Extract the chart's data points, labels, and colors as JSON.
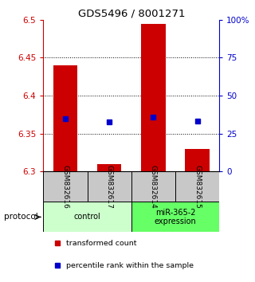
{
  "title": "GDS5496 / 8001271",
  "samples": [
    "GSM832616",
    "GSM832617",
    "GSM832614",
    "GSM832615"
  ],
  "bar_bottom": 6.3,
  "bar_tops": [
    6.44,
    6.31,
    6.495,
    6.33
  ],
  "percentile_values": [
    6.37,
    6.365,
    6.372,
    6.366
  ],
  "ylim_left": [
    6.3,
    6.5
  ],
  "ylim_right": [
    0,
    100
  ],
  "yticks_left": [
    6.3,
    6.35,
    6.4,
    6.45,
    6.5
  ],
  "yticks_right": [
    0,
    25,
    50,
    75,
    100
  ],
  "ytick_labels_right": [
    "0",
    "25",
    "50",
    "75",
    "100%"
  ],
  "bar_color": "#cc0000",
  "percentile_color": "#0000cc",
  "groups": [
    {
      "label": "control",
      "indices": [
        0,
        1
      ],
      "color": "#ccffcc"
    },
    {
      "label": "miR-365-2\nexpression",
      "indices": [
        2,
        3
      ],
      "color": "#66ff66"
    }
  ],
  "protocol_label": "protocol",
  "legend_items": [
    {
      "color": "#cc0000",
      "label": "transformed count"
    },
    {
      "color": "#0000cc",
      "label": "percentile rank within the sample"
    }
  ],
  "sample_box_color": "#c8c8c8",
  "grid_color": "#000000",
  "left_axis_color": "#cc0000",
  "right_axis_color": "#0000cc"
}
